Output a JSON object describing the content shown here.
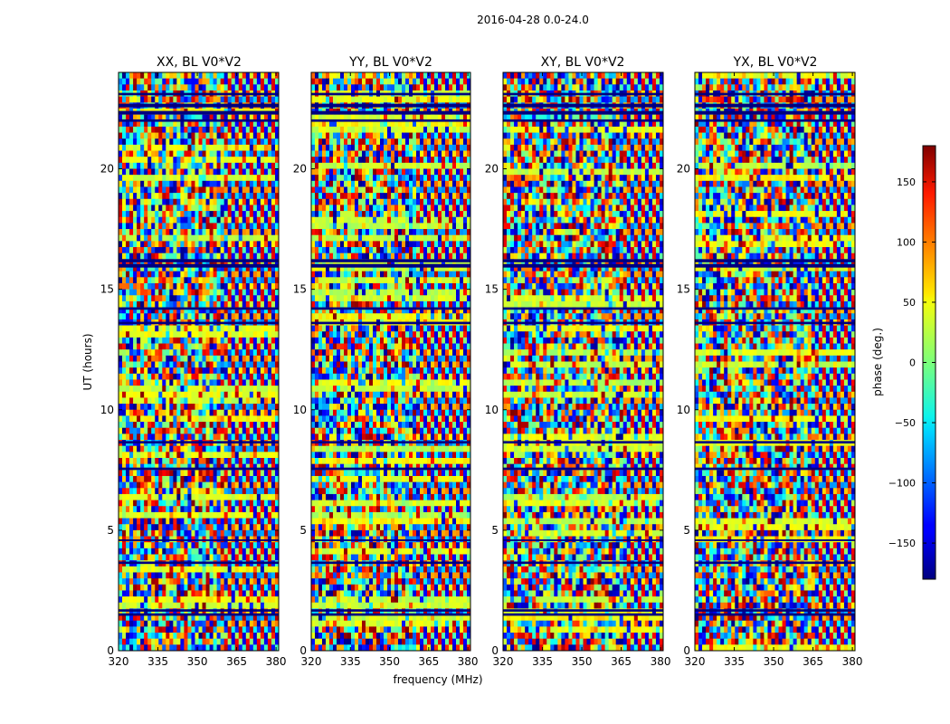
{
  "suptitle": "2016-04-28 0.0-24.0",
  "chart_data": [
    {
      "type": "heatmap",
      "title": "XX, BL V0*V2",
      "xlabel": "",
      "ylabel": "UT (hours)",
      "xlim": [
        320,
        381
      ],
      "ylim": [
        0,
        24
      ],
      "xticks": [
        320,
        335,
        350,
        365,
        380
      ],
      "yticks": [
        0,
        5,
        10,
        15,
        20
      ],
      "fringe_start_mhz": 360
    },
    {
      "type": "heatmap",
      "title": "YY, BL V0*V2",
      "xlabel": "frequency (MHz)",
      "ylabel": "",
      "xlim": [
        320,
        381
      ],
      "ylim": [
        0,
        24
      ],
      "xticks": [
        320,
        335,
        350,
        365,
        380
      ],
      "yticks": [
        0,
        5,
        10,
        15,
        20
      ],
      "fringe_start_mhz": 360
    },
    {
      "type": "heatmap",
      "title": "XY, BL V0*V2",
      "xlabel": "",
      "ylabel": "",
      "xlim": [
        320,
        381
      ],
      "ylim": [
        0,
        24
      ],
      "xticks": [
        320,
        335,
        350,
        365,
        380
      ],
      "yticks": [
        0,
        5,
        10,
        15,
        20
      ],
      "fringe_start_mhz": 365
    },
    {
      "type": "heatmap",
      "title": "YX, BL V0*V2",
      "xlabel": "",
      "ylabel": "",
      "xlim": [
        320,
        381
      ],
      "ylim": [
        0,
        24
      ],
      "xticks": [
        320,
        335,
        350,
        365,
        380
      ],
      "yticks": [
        0,
        5,
        10,
        15,
        20
      ],
      "fringe_start_mhz": 365
    }
  ],
  "colorbar": {
    "label": "phase (deg.)",
    "range": [
      -180,
      180
    ],
    "ticks": [
      150,
      100,
      50,
      0,
      -50,
      -100,
      -150
    ],
    "tick_labels": [
      "150",
      "100",
      "50",
      "0",
      "−50",
      "−100",
      "−150"
    ],
    "colormap": "jet"
  },
  "flagged_bands_ut_hours": [
    [
      1.45,
      1.55
    ],
    [
      1.62,
      1.72
    ],
    [
      3.6,
      3.7
    ],
    [
      4.55,
      4.62
    ],
    [
      7.5,
      7.6
    ],
    [
      8.6,
      8.7
    ],
    [
      13.55,
      13.65
    ],
    [
      14.15,
      14.25
    ],
    [
      15.9,
      16.05
    ],
    [
      16.12,
      16.25
    ],
    [
      21.95,
      22.05
    ],
    [
      22.25,
      22.4
    ],
    [
      22.55,
      22.7
    ],
    [
      23.05,
      23.15
    ]
  ]
}
